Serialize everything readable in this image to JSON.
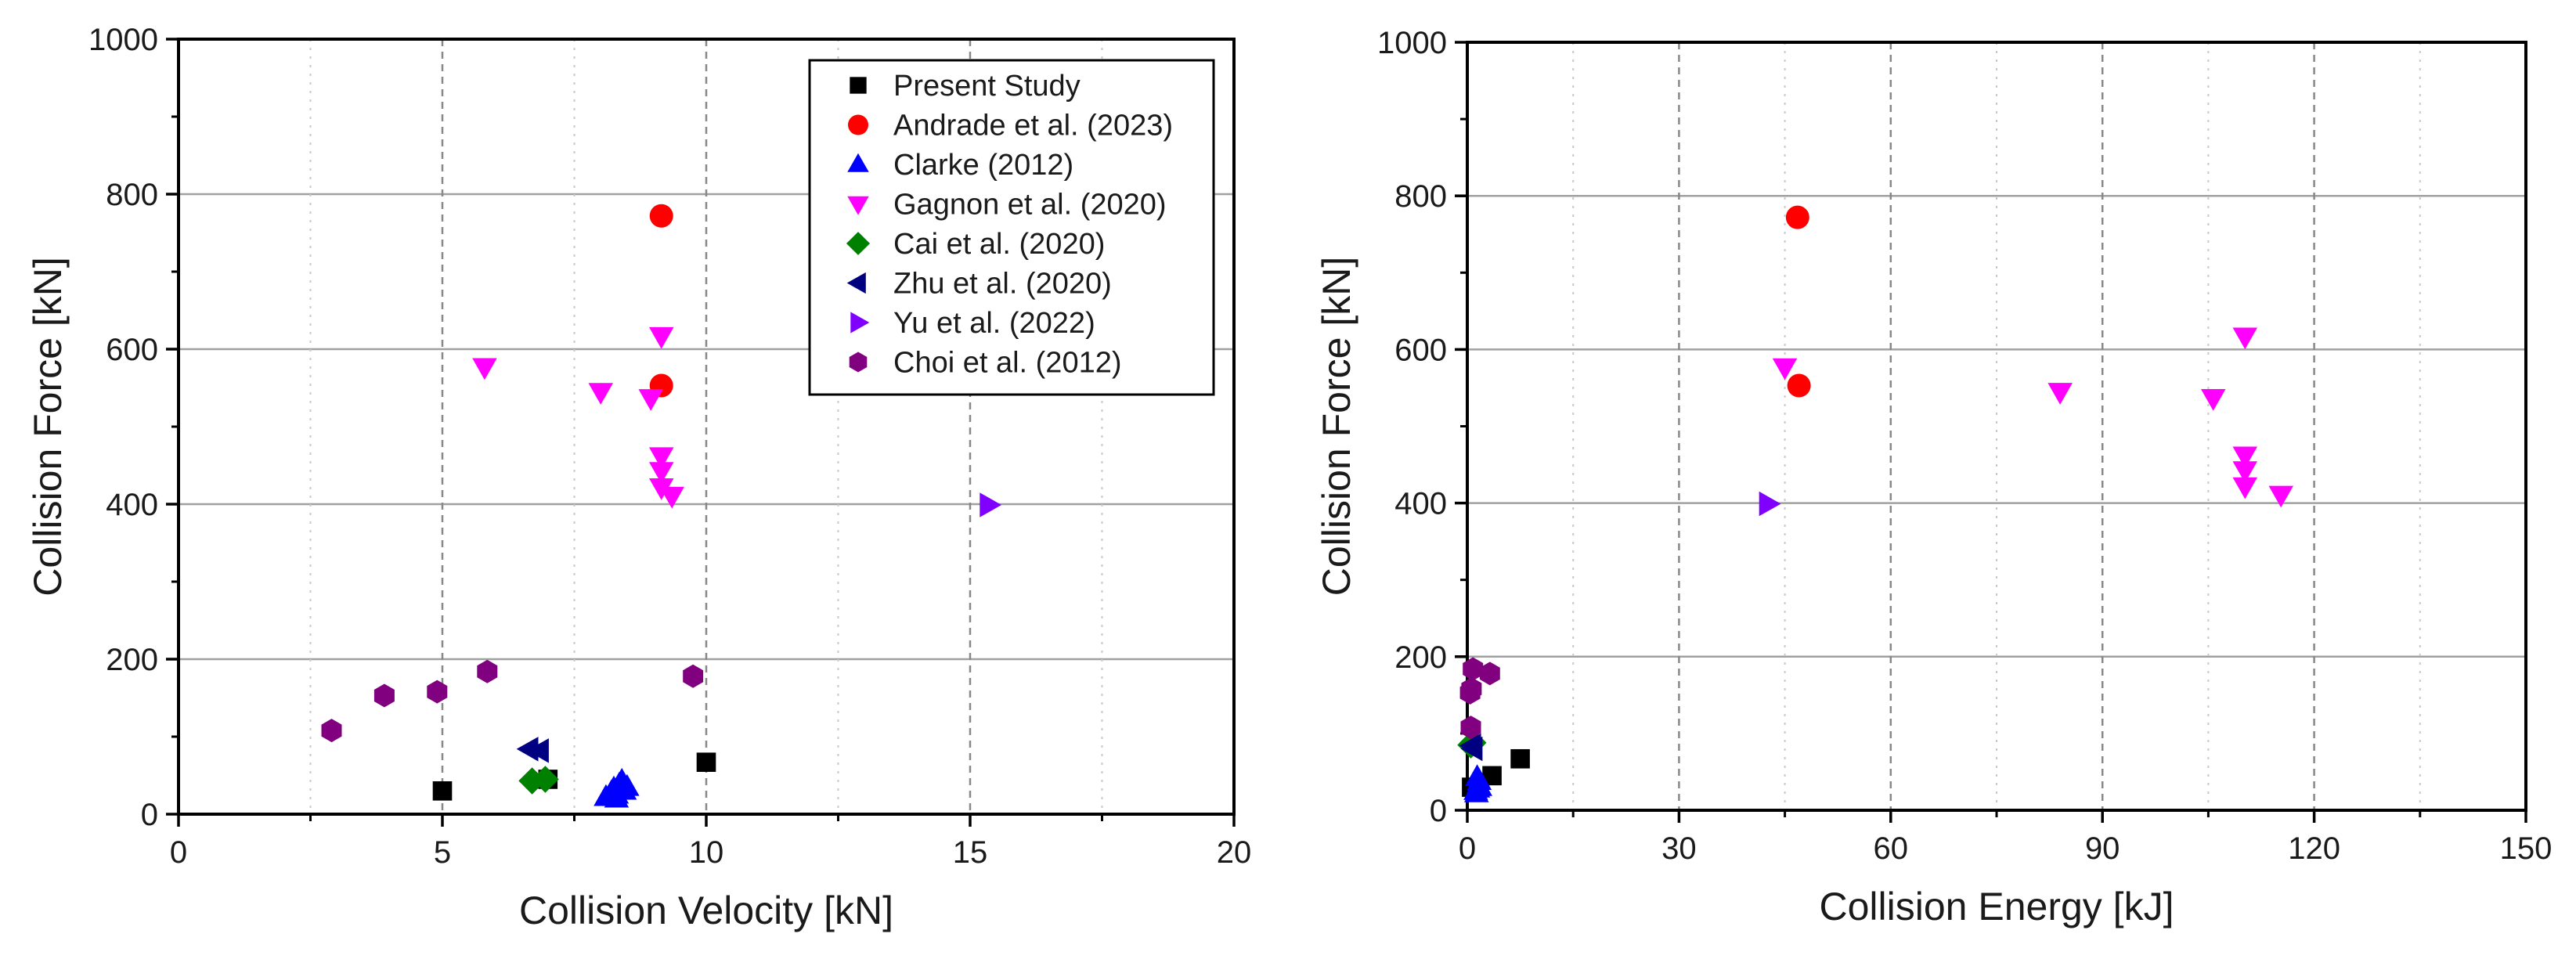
{
  "chart_data": [
    {
      "type": "scatter",
      "xlabel": "Collision Velocity [kN]",
      "ylabel": "Collision Force [kN]",
      "xlim": [
        0,
        20
      ],
      "ylim": [
        0,
        1000
      ],
      "xticks": [
        "0",
        "5",
        "10",
        "15",
        "20"
      ],
      "yticks": [
        "0",
        "200",
        "400",
        "600",
        "800",
        "1000"
      ],
      "xtick_values": [
        0,
        5,
        10,
        15,
        20
      ],
      "ytick_values": [
        0,
        200,
        400,
        600,
        800,
        1000
      ],
      "grid": true,
      "legend": "top-right",
      "series": [
        {
          "name": "Present Study",
          "marker": "square",
          "color": "#000000",
          "points": [
            [
              5.0,
              30
            ],
            [
              7.0,
              45
            ],
            [
              10.0,
              67
            ]
          ]
        },
        {
          "name": "Andrade et al. (2023)",
          "marker": "circle",
          "color": "#ff0000",
          "points": [
            [
              9.15,
              772
            ],
            [
              9.15,
              553
            ]
          ]
        },
        {
          "name": "Clarke (2012)",
          "marker": "triangle-up",
          "color": "#0000ff",
          "points": [
            [
              8.1,
              22
            ],
            [
              8.2,
              28
            ],
            [
              8.25,
              33
            ],
            [
              8.3,
              25
            ],
            [
              8.35,
              38
            ],
            [
              8.4,
              43
            ],
            [
              8.45,
              30
            ],
            [
              8.5,
              35
            ],
            [
              8.3,
              20
            ]
          ]
        },
        {
          "name": "Gagnon et al. (2020)",
          "marker": "triangle-down",
          "color": "#ff00ff",
          "points": [
            [
              5.8,
              577
            ],
            [
              8.0,
              545
            ],
            [
              8.95,
              537
            ],
            [
              9.15,
              617
            ],
            [
              9.15,
              462
            ],
            [
              9.15,
              443
            ],
            [
              9.15,
              422
            ],
            [
              9.35,
              411
            ]
          ]
        },
        {
          "name": "Cai et al. (2020)",
          "marker": "diamond",
          "color": "#008000",
          "points": [
            [
              6.7,
              43
            ],
            [
              6.95,
              45
            ]
          ]
        },
        {
          "name": "Zhu et al. (2020)",
          "marker": "triangle-left",
          "color": "#000080",
          "points": [
            [
              6.65,
              84
            ],
            [
              6.85,
              82
            ]
          ]
        },
        {
          "name": "Yu et al. (2022)",
          "marker": "triangle-right",
          "color": "#8000ff",
          "points": [
            [
              15.35,
              399
            ]
          ]
        },
        {
          "name": "Choi et al. (2012)",
          "marker": "hexagon",
          "color": "#800080",
          "points": [
            [
              2.9,
              108
            ],
            [
              3.9,
              153
            ],
            [
              4.9,
              158
            ],
            [
              5.85,
              184
            ],
            [
              9.75,
              178
            ]
          ]
        }
      ]
    },
    {
      "type": "scatter",
      "xlabel": "Collision Energy [kJ]",
      "ylabel": "Collision Force [kN]",
      "xlim": [
        0,
        150
      ],
      "ylim": [
        0,
        1000
      ],
      "xticks": [
        "0",
        "30",
        "60",
        "90",
        "120",
        "150"
      ],
      "yticks": [
        "0",
        "200",
        "400",
        "600",
        "800",
        "1000"
      ],
      "xtick_values": [
        0,
        30,
        60,
        90,
        120,
        150
      ],
      "ytick_values": [
        0,
        200,
        400,
        600,
        800,
        1000
      ],
      "grid": true,
      "legend": "none",
      "series": [
        {
          "name": "Present Study",
          "marker": "square",
          "color": "#000000",
          "points": [
            [
              3.5,
              45
            ],
            [
              7.5,
              67
            ],
            [
              0.6,
              30
            ]
          ]
        },
        {
          "name": "Andrade et al. (2023)",
          "marker": "circle",
          "color": "#ff0000",
          "points": [
            [
              46.8,
              772
            ],
            [
              47.0,
              553
            ]
          ]
        },
        {
          "name": "Clarke (2012)",
          "marker": "triangle-up",
          "color": "#0000ff",
          "points": [
            [
              1.3,
              22
            ],
            [
              1.5,
              28
            ],
            [
              1.6,
              33
            ],
            [
              1.7,
              38
            ],
            [
              1.4,
              43
            ],
            [
              1.8,
              30
            ],
            [
              1.2,
              25
            ]
          ]
        },
        {
          "name": "Gagnon et al. (2020)",
          "marker": "triangle-down",
          "color": "#ff00ff",
          "points": [
            [
              45.0,
              577
            ],
            [
              84.0,
              545
            ],
            [
              105.7,
              537
            ],
            [
              110.2,
              617
            ],
            [
              110.2,
              462
            ],
            [
              110.2,
              443
            ],
            [
              110.2,
              422
            ],
            [
              115.3,
              411
            ]
          ]
        },
        {
          "name": "Cai et al. (2020)",
          "marker": "diamond",
          "color": "#008000",
          "points": [
            [
              0.8,
              88
            ],
            [
              0.5,
              85
            ]
          ]
        },
        {
          "name": "Zhu et al. (2020)",
          "marker": "triangle-left",
          "color": "#000080",
          "points": [
            [
              0.7,
              84
            ],
            [
              0.9,
              80
            ]
          ]
        },
        {
          "name": "Yu et al. (2022)",
          "marker": "triangle-right",
          "color": "#8000ff",
          "points": [
            [
              42.6,
              399
            ]
          ]
        },
        {
          "name": "Choi et al. (2012)",
          "marker": "hexagon",
          "color": "#800080",
          "points": [
            [
              0.8,
              184
            ],
            [
              3.2,
              178
            ],
            [
              0.6,
              158
            ],
            [
              0.4,
              153
            ],
            [
              0.5,
              108
            ]
          ]
        }
      ]
    }
  ]
}
